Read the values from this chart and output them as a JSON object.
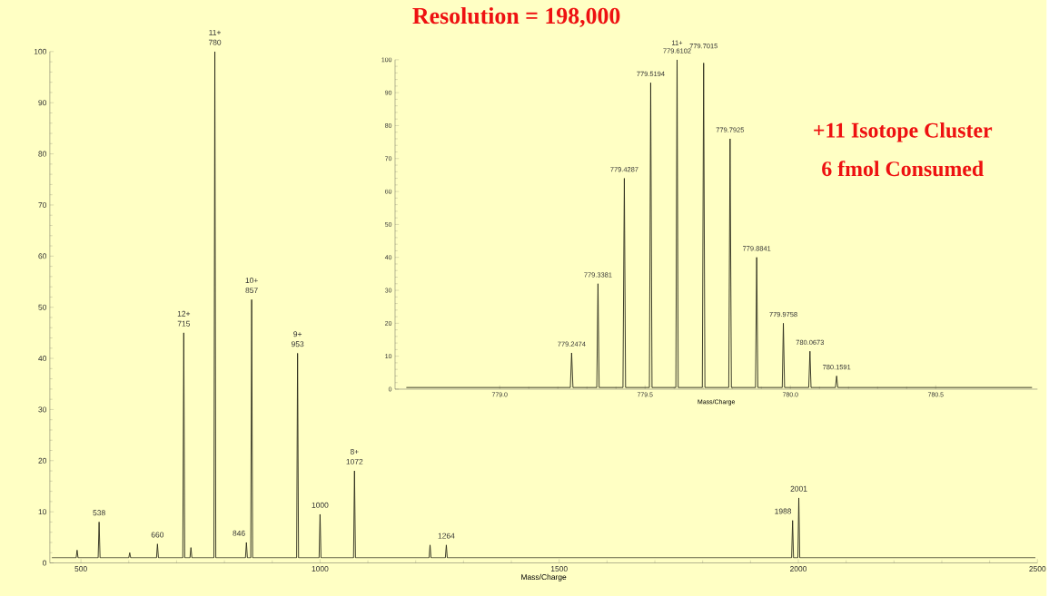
{
  "chart_data": [
    {
      "type": "line",
      "title": "Resolution = 198,000",
      "xlabel": "Mass/Charge",
      "xlim": [
        435,
        2500
      ],
      "ylim": [
        0,
        100
      ],
      "xticks": [
        500,
        1000,
        1500,
        2000,
        2500
      ],
      "yticks": [
        0,
        10,
        20,
        30,
        40,
        50,
        60,
        70,
        80,
        90,
        100
      ],
      "series": [
        {
          "color": "#2a2a1a",
          "x": [
            440,
            490,
            492,
            494,
            536,
            538,
            540,
            600,
            602,
            604,
            658,
            660,
            662,
            713,
            715,
            717,
            728,
            730,
            732,
            778,
            780,
            782,
            844,
            846,
            848,
            855,
            857,
            859,
            951,
            953,
            955,
            998,
            1000,
            1002,
            1070,
            1072,
            1074,
            1228,
            1230,
            1232,
            1262,
            1264,
            1266,
            1986,
            1988,
            1990,
            1999,
            2001,
            2003,
            2495
          ],
          "values": [
            1,
            1,
            2.5,
            1,
            1,
            8,
            1,
            1,
            2,
            1,
            1,
            3.7,
            1,
            1,
            45,
            1,
            1,
            3,
            1,
            1,
            100,
            1,
            1,
            4,
            1,
            1,
            51.5,
            1,
            1,
            41,
            1,
            1,
            9.5,
            1,
            1,
            18,
            1,
            1,
            3.5,
            1,
            1,
            3.5,
            1,
            1,
            8.3,
            1,
            1,
            12.7,
            1,
            1
          ]
        }
      ],
      "annotations": [
        {
          "text": "538",
          "x": 538,
          "y": 8
        },
        {
          "text": "660",
          "x": 660,
          "y": 3.7
        },
        {
          "text": "715",
          "x": 715,
          "y": 45
        },
        {
          "text": "12+",
          "x": 715,
          "y": 45
        },
        {
          "text": "780",
          "x": 780,
          "y": 100
        },
        {
          "text": "11+",
          "x": 780,
          "y": 100
        },
        {
          "text": "846",
          "x": 846,
          "y": 4
        },
        {
          "text": "857",
          "x": 857,
          "y": 51.5
        },
        {
          "text": "10+",
          "x": 857,
          "y": 51.5
        },
        {
          "text": "953",
          "x": 953,
          "y": 41
        },
        {
          "text": "9+",
          "x": 953,
          "y": 41
        },
        {
          "text": "1000",
          "x": 1000,
          "y": 9.5
        },
        {
          "text": "1072",
          "x": 1072,
          "y": 18
        },
        {
          "text": "8+",
          "x": 1072,
          "y": 18
        },
        {
          "text": "1264",
          "x": 1264,
          "y": 3.5
        },
        {
          "text": "1988",
          "x": 1988,
          "y": 8.3
        },
        {
          "text": "2001",
          "x": 2001,
          "y": 12.7
        }
      ]
    },
    {
      "type": "line",
      "xlabel": "Mass/Charge",
      "xlim": [
        778.64,
        780.85
      ],
      "ylim": [
        0,
        100
      ],
      "xticks": [
        {
          "value": 779.0,
          "label": "779.0"
        },
        {
          "value": 779.5,
          "label": "779.5"
        },
        {
          "value": 780.0,
          "label": "780.0"
        },
        {
          "value": 780.5,
          "label": "780.5"
        }
      ],
      "yticks": [
        0,
        10,
        20,
        30,
        40,
        50,
        60,
        70,
        80,
        90,
        100
      ],
      "series": [
        {
          "color": "#2a2a1a",
          "x": [
            778.68,
            779.243,
            779.2474,
            779.252,
            779.334,
            779.3381,
            779.342,
            779.424,
            779.4287,
            779.433,
            779.515,
            779.5194,
            779.524,
            779.606,
            779.6102,
            779.614,
            779.697,
            779.7015,
            779.706,
            779.788,
            779.7925,
            779.797,
            779.88,
            779.8841,
            779.888,
            779.972,
            779.9758,
            779.98,
            780.063,
            780.0673,
            780.071,
            780.155,
            780.1591,
            780.163,
            780.83
          ],
          "values": [
            0.5,
            0.5,
            11,
            0.5,
            0.5,
            32,
            0.5,
            0.5,
            64,
            0.5,
            0.5,
            93,
            0.5,
            0.5,
            100,
            0.5,
            0.5,
            99,
            0.5,
            0.5,
            76,
            0.5,
            0.5,
            40,
            0.5,
            0.5,
            20,
            0.5,
            0.5,
            11.5,
            0.5,
            0.5,
            4,
            0.5,
            0.5
          ]
        }
      ],
      "annotations": [
        {
          "text": "779.2474",
          "x": 779.2474,
          "y": 11
        },
        {
          "text": "779.3381",
          "x": 779.3381,
          "y": 32
        },
        {
          "text": "779.4287",
          "x": 779.4287,
          "y": 64
        },
        {
          "text": "779.5194",
          "x": 779.5194,
          "y": 93
        },
        {
          "text": "779.6102",
          "x": 779.6102,
          "y": 100
        },
        {
          "text": "11+",
          "x": 779.6102,
          "y": 100
        },
        {
          "text": "779.7015",
          "x": 779.7015,
          "y": 99
        },
        {
          "text": "779.7925",
          "x": 779.7925,
          "y": 76
        },
        {
          "text": "779.8841",
          "x": 779.8841,
          "y": 40
        },
        {
          "text": "779.9758",
          "x": 779.9758,
          "y": 20
        },
        {
          "text": "780.0673",
          "x": 780.0673,
          "y": 11.5
        },
        {
          "text": "780.1591",
          "x": 780.1591,
          "y": 4
        },
        "+11 Isotope Cluster",
        "6 fmol Consumed"
      ]
    }
  ]
}
